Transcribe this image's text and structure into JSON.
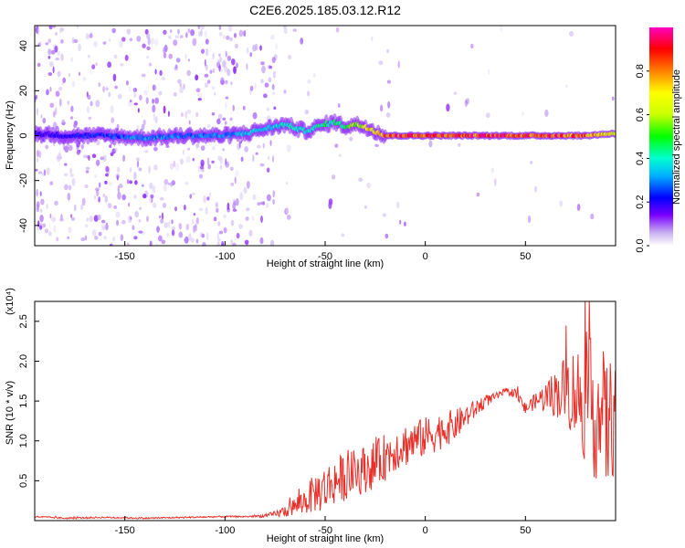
{
  "title": "C2E6.2025.185.03.12.R12",
  "chart_data": [
    {
      "type": "heatmap",
      "xlabel": "Height of straight line (km)",
      "ylabel": "Frequency (Hz)",
      "xlim": [
        -195,
        95
      ],
      "ylim": [
        -49,
        49
      ],
      "xticks": [
        -150,
        -100,
        -50,
        0,
        50
      ],
      "yticks": [
        -40,
        -20,
        0,
        20,
        40
      ],
      "colorbar": {
        "label": "Normalized spectral amplitude",
        "range": [
          0,
          1
        ],
        "ticks": [
          0.0,
          0.2,
          0.4,
          0.6,
          0.8
        ],
        "tick_labels": [
          "0.0",
          "0.2",
          "0.4",
          "0.6",
          "0.8"
        ],
        "colormap": [
          "#ffffff",
          "#c8b0f0",
          "#7a00ff",
          "#0000ff",
          "#00b0ff",
          "#00ffd0",
          "#00ff00",
          "#c8ff00",
          "#ffff00",
          "#ff8000",
          "#ff0000",
          "#ff00c0"
        ]
      },
      "ridge": {
        "x": [
          -195,
          -180,
          -160,
          -140,
          -120,
          -100,
          -90,
          -80,
          -70,
          -60,
          -50,
          -45,
          -40,
          -35,
          -30,
          -25,
          -20,
          -10,
          0,
          10,
          20,
          40,
          60,
          80,
          95
        ],
        "y": [
          1,
          0,
          0,
          -1,
          0,
          0,
          1,
          3,
          5,
          2,
          5,
          6,
          4,
          5,
          4,
          2,
          0,
          0,
          0,
          0,
          0,
          0,
          0,
          0,
          1
        ],
        "peak_amplitude": [
          0.25,
          0.25,
          0.3,
          0.35,
          0.35,
          0.35,
          0.4,
          0.4,
          0.45,
          0.45,
          0.5,
          0.5,
          0.55,
          0.6,
          0.7,
          0.8,
          0.9,
          0.9,
          0.9,
          0.9,
          0.9,
          0.9,
          0.9,
          0.85,
          0.7
        ]
      }
    },
    {
      "type": "line",
      "xlabel": "Height of straight line (km)",
      "ylabel": "SNR (10 * v/v)",
      "scale_label": "(x10⁴)",
      "xlim": [
        -195,
        95
      ],
      "ylim": [
        0,
        2.75
      ],
      "xticks": [
        -150,
        -100,
        -50,
        0,
        50
      ],
      "yticks": [
        0.5,
        1.0,
        1.5,
        2.0,
        2.5
      ],
      "ytick_labels": [
        "0.5",
        "1.0",
        "1.5",
        "2.0",
        "2.5"
      ],
      "color": "#e8302a",
      "series": [
        {
          "x": [
            -195,
            -180,
            -160,
            -140,
            -120,
            -100,
            -90,
            -80,
            -75,
            -70,
            -65,
            -60,
            -55,
            -50,
            -45,
            -40,
            -35,
            -30,
            -25,
            -20,
            -15,
            -10,
            -5,
            0,
            5,
            10,
            15,
            20,
            25,
            30,
            35,
            40,
            45,
            50,
            55,
            60,
            65,
            70,
            75,
            80,
            85,
            90,
            95
          ],
          "y": [
            0.05,
            0.03,
            0.04,
            0.03,
            0.04,
            0.05,
            0.05,
            0.06,
            0.08,
            0.12,
            0.18,
            0.25,
            0.35,
            0.4,
            0.5,
            0.55,
            0.6,
            0.65,
            0.7,
            0.8,
            0.9,
            0.95,
            1.0,
            1.05,
            1.1,
            1.15,
            1.2,
            1.3,
            1.4,
            1.5,
            1.55,
            1.62,
            1.6,
            1.4,
            1.5,
            1.55,
            1.6,
            1.65,
            1.6,
            1.5,
            1.4,
            1.2,
            1.3
          ],
          "noise": [
            0.01,
            0.01,
            0.01,
            0.01,
            0.01,
            0.01,
            0.01,
            0.02,
            0.04,
            0.08,
            0.12,
            0.18,
            0.25,
            0.3,
            0.3,
            0.3,
            0.3,
            0.3,
            0.3,
            0.3,
            0.28,
            0.28,
            0.26,
            0.25,
            0.25,
            0.22,
            0.2,
            0.15,
            0.12,
            0.08,
            0.05,
            0.04,
            0.06,
            0.08,
            0.1,
            0.2,
            0.3,
            0.45,
            0.6,
            0.8,
            0.9,
            0.9,
            0.7
          ]
        }
      ]
    }
  ]
}
